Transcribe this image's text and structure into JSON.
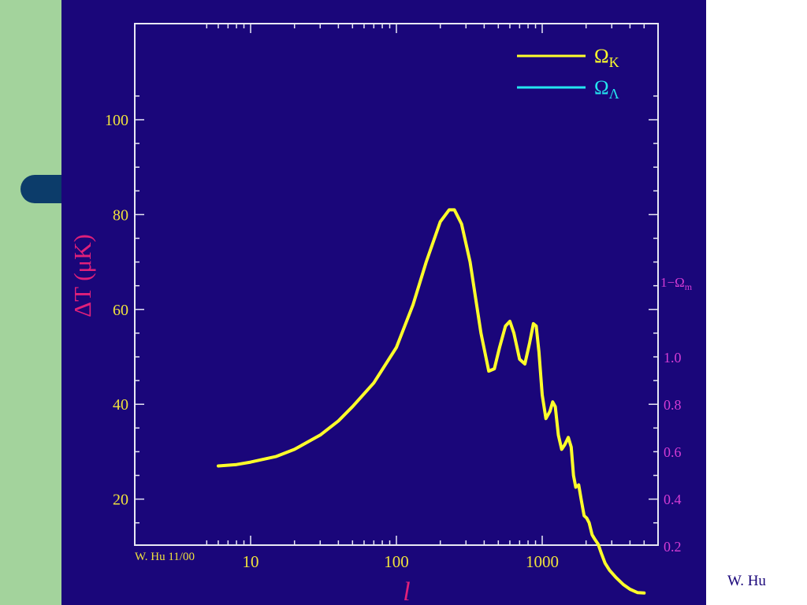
{
  "colors": {
    "slide_background": "#ffffff",
    "left_strip": "#a3d39c",
    "left_pill": "#0c3c6a",
    "plot_background": "#1a067a",
    "axis": "#e8e8f4",
    "left_tick_labels": "#f0e23c",
    "right_tick_labels": "#d43cd4",
    "ylabel": "#e0207a",
    "series_omega_k": "#ffff2a",
    "series_omega_lambda": "#24e6f0"
  },
  "slide": {
    "credit": "W. Hu"
  },
  "chart_data": {
    "type": "line",
    "title": "",
    "xlabel": "l",
    "ylabel": "ΔT (μK)",
    "x_scale": "log",
    "xlim": [
      5,
      5500
    ],
    "ylim": [
      0,
      110
    ],
    "x_ticks": [
      10,
      100,
      1000
    ],
    "x_tick_labels": [
      "10",
      "100",
      "1000"
    ],
    "y_ticks": [
      20,
      40,
      60,
      80,
      100
    ],
    "y_tick_labels": [
      "20",
      "40",
      "60",
      "80",
      "100"
    ],
    "right_axis": {
      "label": "1−Ω",
      "label_subscript": "m",
      "ticks": [
        0.2,
        0.4,
        0.6,
        0.8,
        1.0
      ],
      "tick_labels": [
        "0.2",
        "0.4",
        "0.6",
        "0.8",
        "1.0"
      ]
    },
    "grid": false,
    "legend_position": "top-right",
    "annotation": "W. Hu 11/00",
    "legend": [
      {
        "symbol": "Ω",
        "subscript": "K",
        "color": "#ffff2a"
      },
      {
        "symbol": "Ω",
        "subscript": "Λ",
        "color": "#24e6f0"
      }
    ],
    "series": [
      {
        "x": [
          6,
          8,
          10,
          15,
          20,
          30,
          40,
          50,
          70,
          100,
          130,
          160,
          200,
          230,
          250,
          280,
          320,
          380,
          430,
          470,
          510,
          560,
          600,
          640,
          700,
          760,
          820,
          870,
          910,
          950,
          1000,
          1060,
          1130,
          1180,
          1230,
          1290,
          1360,
          1430,
          1510,
          1580,
          1640,
          1700,
          1780,
          1860,
          1940,
          2020,
          2100,
          2200,
          2300,
          2420,
          2550,
          2700,
          2900,
          3200,
          3600,
          4000,
          4500,
          5000
        ],
        "y": [
          27,
          27.3,
          27.8,
          29,
          30.5,
          33.5,
          36.5,
          39.5,
          44.5,
          52,
          61,
          70,
          78.5,
          81,
          81,
          78,
          70,
          55,
          47,
          47.5,
          52,
          56.5,
          57.5,
          55,
          49.5,
          48.5,
          53,
          57,
          56.5,
          51,
          42,
          37,
          38.5,
          40.5,
          39.5,
          33.5,
          30.5,
          31.5,
          33,
          31,
          25,
          22.5,
          23,
          19.5,
          16.5,
          16,
          15,
          12.5,
          11.5,
          10.5,
          8.5,
          6.5,
          5,
          3.5,
          2,
          1,
          0.3,
          0.2
        ]
      }
    ]
  }
}
